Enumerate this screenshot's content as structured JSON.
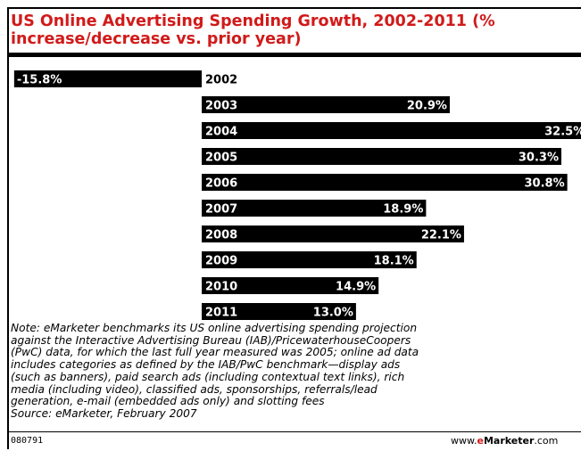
{
  "chart_data": {
    "type": "bar",
    "orientation": "horizontal",
    "title_line1": "US Online Advertising Spending Growth, 2002-2011 (%",
    "title_line2": "increase/decrease vs. prior year)",
    "categories": [
      "2002",
      "2003",
      "2004",
      "2005",
      "2006",
      "2007",
      "2008",
      "2009",
      "2010",
      "2011"
    ],
    "values": [
      -15.8,
      20.9,
      32.5,
      30.3,
      30.8,
      18.9,
      22.1,
      18.1,
      14.9,
      13.0
    ],
    "value_labels": [
      "-15.8%",
      "20.9%",
      "32.5%",
      "30.3%",
      "30.8%",
      "18.9%",
      "22.1%",
      "18.1%",
      "14.9%",
      "13.0%"
    ],
    "bar_color": "#000000",
    "grid": false,
    "legend": false
  },
  "note": {
    "lines": [
      "Note: eMarketer benchmarks its US online advertising spending projection",
      "against the Interactive Advertising Bureau (IAB)/PricewaterhouseCoopers",
      "(PwC) data, for which the last full year measured was 2005; online ad data",
      "includes categories as defined by the IAB/PwC benchmark—display ads",
      "(such as banners), paid search ads (including contextual text links), rich",
      "media (including video), classified ads, sponsorships, referrals/lead",
      "generation, e-mail (embedded ads only) and slotting fees"
    ],
    "source": "Source: eMarketer, February 2007"
  },
  "footer": {
    "id": "080791",
    "brand_prefix": "www.",
    "brand_e": "e",
    "brand_name": "Marketer",
    "brand_suffix": ".com"
  },
  "colors": {
    "title": "#d11a1a",
    "text": "#000000",
    "background": "#ffffff"
  }
}
